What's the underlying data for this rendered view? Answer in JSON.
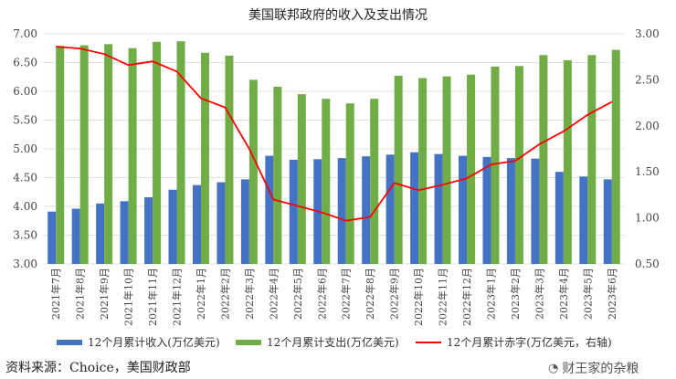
{
  "chart_data": {
    "type": "bar",
    "title": "美国联邦政府的收入及支出情况",
    "categories": [
      "2021年7月",
      "2021年8月",
      "2021年9月",
      "2021年10月",
      "2021年11月",
      "2021年12月",
      "2022年1月",
      "2022年2月",
      "2022年3月",
      "2022年4月",
      "2022年5月",
      "2022年6月",
      "2022年7月",
      "2022年8月",
      "2022年9月",
      "2022年10月",
      "2022年11月",
      "2022年12月",
      "2023年1月",
      "2023年2月",
      "2023年3月",
      "2023年4月",
      "2023年5月",
      "2023年6月"
    ],
    "series": [
      {
        "name": "12个月累计收入(万亿美元)",
        "type": "bar",
        "axis": "left",
        "color": "#4472c4",
        "values": [
          3.91,
          3.96,
          4.05,
          4.09,
          4.16,
          4.29,
          4.37,
          4.42,
          4.47,
          4.88,
          4.81,
          4.82,
          4.84,
          4.87,
          4.9,
          4.94,
          4.91,
          4.88,
          4.86,
          4.84,
          4.83,
          4.6,
          4.52,
          4.47
        ]
      },
      {
        "name": "12个月累计支出(万亿美元)",
        "type": "bar",
        "axis": "left",
        "color": "#70ad47",
        "values": [
          6.79,
          6.8,
          6.82,
          6.75,
          6.86,
          6.87,
          6.67,
          6.62,
          6.2,
          6.08,
          5.95,
          5.87,
          5.79,
          5.87,
          6.27,
          6.23,
          6.26,
          6.29,
          6.43,
          6.44,
          6.63,
          6.54,
          6.63,
          6.72
        ]
      },
      {
        "name": "12个月累计赤字(万亿美元，右轴)",
        "type": "line",
        "axis": "right",
        "color": "#ff0000",
        "values": [
          2.86,
          2.84,
          2.78,
          2.66,
          2.7,
          2.59,
          2.3,
          2.2,
          1.75,
          1.2,
          1.13,
          1.06,
          0.97,
          1.01,
          1.38,
          1.3,
          1.36,
          1.43,
          1.58,
          1.62,
          1.8,
          1.94,
          2.12,
          2.26
        ]
      }
    ],
    "ylim": [
      3.0,
      7.0
    ],
    "yticks": [
      "3.00",
      "3.50",
      "4.00",
      "4.50",
      "5.00",
      "5.50",
      "6.00",
      "6.50",
      "7.00"
    ],
    "y2lim": [
      0.5,
      3.0
    ],
    "y2ticks": [
      "0.50",
      "1.00",
      "1.50",
      "2.00",
      "2.50",
      "3.00"
    ],
    "grid": true,
    "legend": "bottom"
  },
  "source": "资料来源：Choice，美国财政部",
  "watermark": "财王家的杂粮"
}
